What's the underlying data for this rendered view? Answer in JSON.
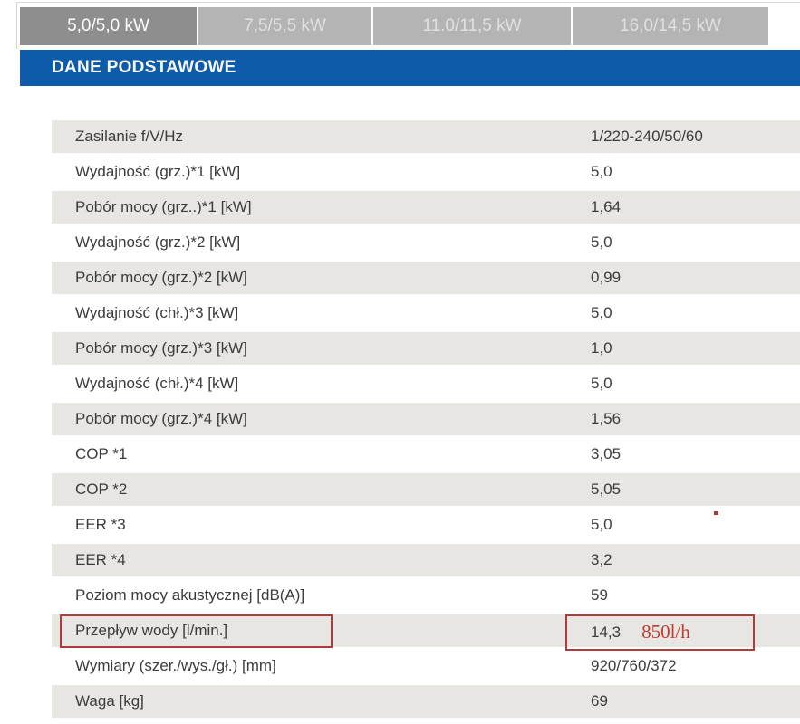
{
  "tabs": {
    "items": [
      {
        "label": "5,0/5,0 kW",
        "active": true
      },
      {
        "label": "7,5/5,5 kW",
        "active": false
      },
      {
        "label": "11.0/11,5 kW",
        "active": false
      },
      {
        "label": "16,0/14,5 kW",
        "active": false
      }
    ]
  },
  "section_header": {
    "title": "DANE PODSTAWOWE"
  },
  "table": {
    "rows": [
      {
        "label": "Zasilanie f/V/Hz",
        "value": "1/220-240/50/60"
      },
      {
        "label": "Wydajność (grz.)*1 [kW]",
        "value": "5,0"
      },
      {
        "label": "Pobór mocy (grz..)*1 [kW]",
        "value": "1,64"
      },
      {
        "label": "Wydajność (grz.)*2 [kW]",
        "value": "5,0"
      },
      {
        "label": "Pobór mocy (grz.)*2 [kW]",
        "value": "0,99"
      },
      {
        "label": "Wydajność (chł.)*3 [kW]",
        "value": "5,0"
      },
      {
        "label": "Pobór mocy (grz.)*3 [kW]",
        "value": "1,0"
      },
      {
        "label": "Wydajność (chł.)*4 [kW]",
        "value": "5,0"
      },
      {
        "label": "Pobór mocy (grz.)*4 [kW]",
        "value": "1,56"
      },
      {
        "label": "COP *1",
        "value": "3,05"
      },
      {
        "label": "COP *2",
        "value": "5,05"
      },
      {
        "label": "EER *3",
        "value": "5,0"
      },
      {
        "label": "EER *4",
        "value": "3,2"
      },
      {
        "label": "Poziom mocy akustycznej [dB(A)]",
        "value": "59"
      },
      {
        "label": "Przepływ wody [l/min.]",
        "value": "14,3",
        "annotation": "850l/h",
        "highlighted": true
      },
      {
        "label": "Wymiary (szer./wys./gł.) [mm]",
        "value": "920/760/372"
      },
      {
        "label": "Waga [kg]",
        "value": "69"
      }
    ]
  },
  "annotations": {
    "flow_rate_note": "850l/h"
  },
  "colors": {
    "tab_active_bg": "#8e8e8e",
    "tab_inactive_bg": "#b4b4b4",
    "header_bg": "#0e5ca9",
    "row_alt_bg": "#e8e6e3",
    "text": "#3c3c3b",
    "annotation_red": "#b23a38"
  }
}
